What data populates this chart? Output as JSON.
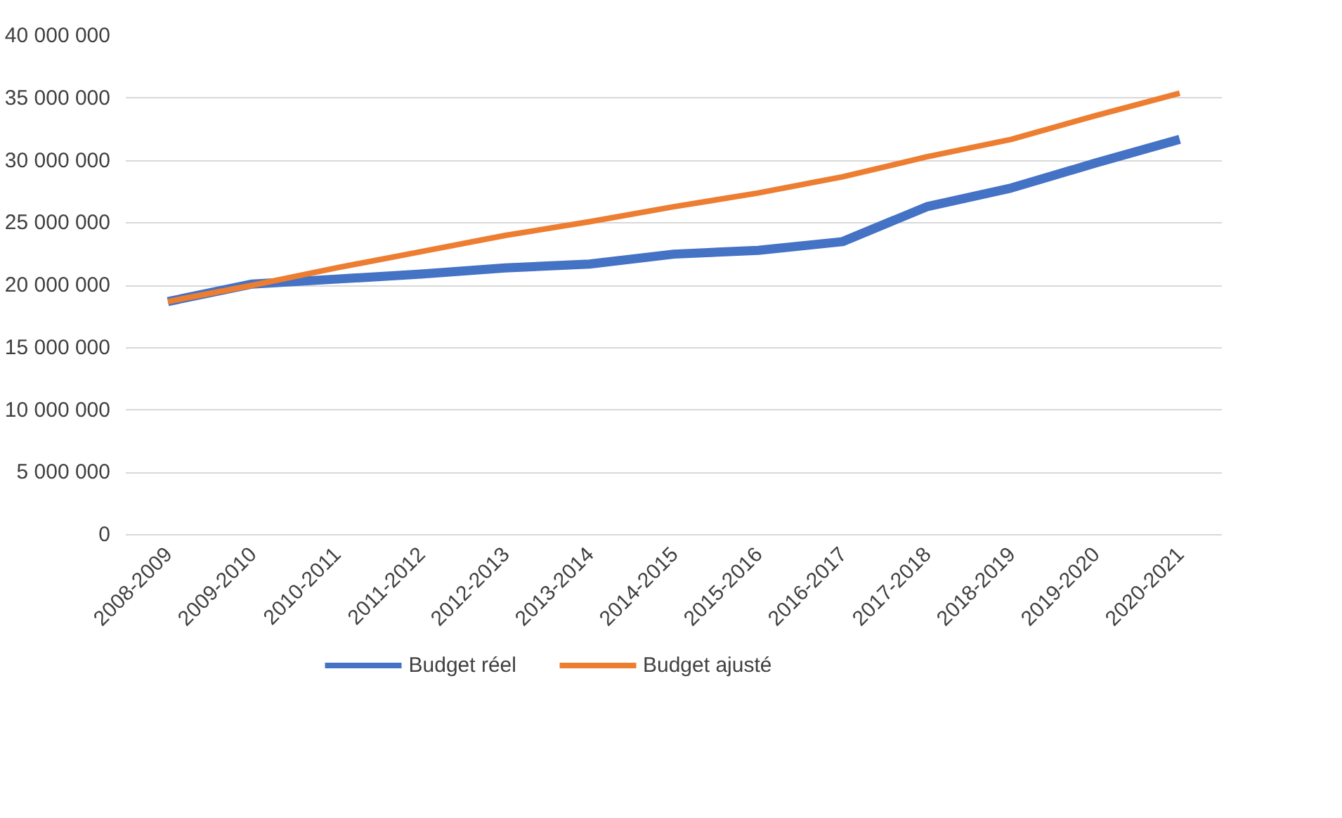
{
  "chart_data": {
    "type": "line",
    "categories": [
      "2008-2009",
      "2009-2010",
      "2010-2011",
      "2011-2012",
      "2012-2013",
      "2013-2014",
      "2014-2015",
      "2015-2016",
      "2016-2017",
      "2017-2018",
      "2018-2019",
      "2019-2020",
      "2020-2021"
    ],
    "series": [
      {
        "name": "Budget réel",
        "color": "#4472c4",
        "values": [
          18700000,
          20100000,
          20500000,
          20900000,
          21400000,
          21700000,
          22500000,
          22800000,
          23500000,
          26300000,
          27800000,
          29800000,
          31700000
        ]
      },
      {
        "name": "Budget ajusté",
        "color": "#ed7d31",
        "values": [
          18700000,
          20000000,
          21400000,
          22700000,
          24000000,
          25100000,
          26300000,
          27400000,
          28700000,
          30300000,
          31700000,
          33600000,
          35400000
        ]
      }
    ],
    "ylim": [
      0,
      40000000
    ],
    "yticks": [
      {
        "value": 0,
        "label": "0"
      },
      {
        "value": 5000000,
        "label": "5 000 000"
      },
      {
        "value": 10000000,
        "label": "10 000 000"
      },
      {
        "value": 15000000,
        "label": "15 000 000"
      },
      {
        "value": 20000000,
        "label": "20 000 000"
      },
      {
        "value": 25000000,
        "label": "25 000 000"
      },
      {
        "value": 30000000,
        "label": "30 000 000"
      },
      {
        "value": 35000000,
        "label": "35 000 000"
      },
      {
        "value": 40000000,
        "label": "40 000 000"
      }
    ],
    "grid": "y",
    "legend": "bottom",
    "marker": "none",
    "line_style": "solid"
  }
}
